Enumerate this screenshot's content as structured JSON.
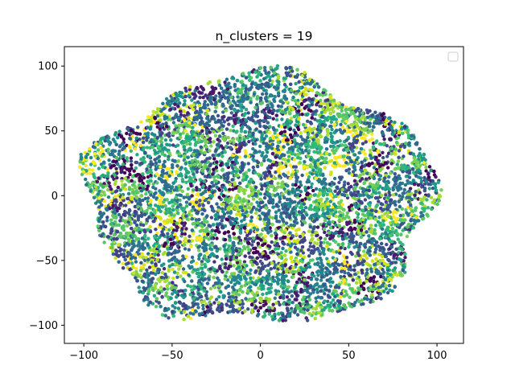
{
  "chart_data": {
    "type": "scatter",
    "title": "n_clusters = 19",
    "xlabel": "",
    "ylabel": "",
    "xlim": [
      -111,
      115
    ],
    "ylim": [
      -114,
      115
    ],
    "xticks": [
      -100,
      -50,
      0,
      50,
      100
    ],
    "yticks": [
      -100,
      -50,
      0,
      50,
      100
    ],
    "xtick_labels": [
      "−100",
      "−50",
      "0",
      "50",
      "100"
    ],
    "ytick_labels": [
      "−100",
      "−50",
      "0",
      "50",
      "100"
    ],
    "grid": false,
    "legend": {
      "placement": "top-right",
      "entries": []
    },
    "point_cloud": {
      "description_center": [
        0,
        -3
      ],
      "extent_x": [
        -100,
        102
      ],
      "extent_y": [
        -103,
        100
      ],
      "n_clusters": 19
    },
    "colors": [
      "#440154",
      "#481a6c",
      "#472f7d",
      "#414487",
      "#39568c",
      "#31688e",
      "#2a788e",
      "#23888e",
      "#1f988b",
      "#22a884",
      "#35b779",
      "#54c568",
      "#7ad151",
      "#a5db36",
      "#d2e21b",
      "#fde725",
      "#3b528b",
      "#2c728e",
      "#5ec962"
    ]
  }
}
